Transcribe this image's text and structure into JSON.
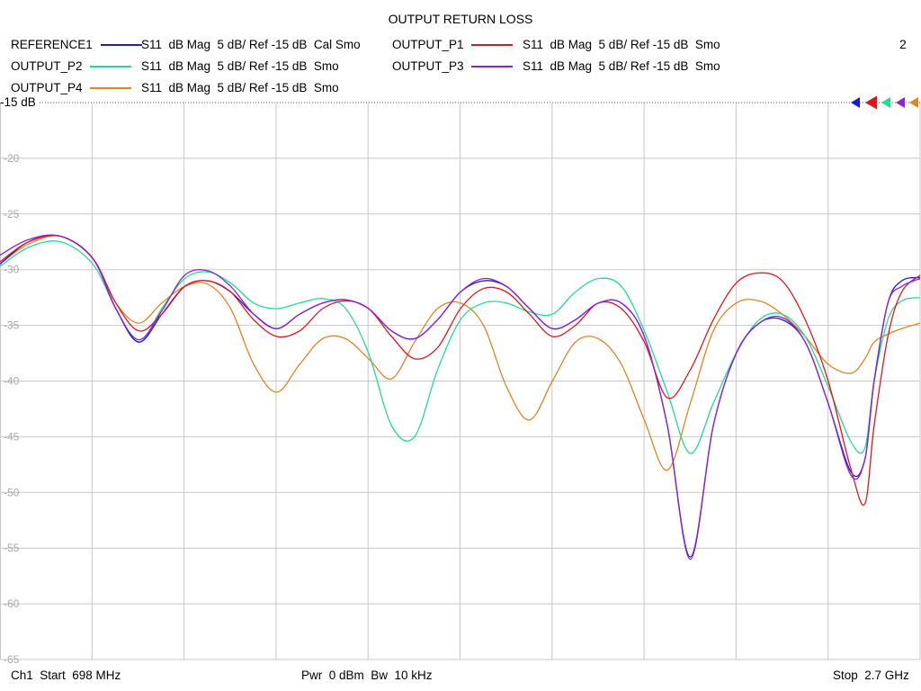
{
  "chart_data": {
    "type": "line",
    "title": "OUTPUT RETURN LOSS",
    "channel_number": "2",
    "ref_label": "-15 dB",
    "y_ticks": [
      "-20",
      "-25",
      "-30",
      "-35",
      "-40",
      "-45",
      "-50",
      "-55",
      "-60",
      "-65"
    ],
    "ylim": [
      -65,
      -15
    ],
    "xlim_mhz": [
      698,
      2700
    ],
    "x_divisions": 10,
    "grid": true,
    "legend_position": "top",
    "footer": {
      "start": "Ch1  Start  698 MHz",
      "center": "Pwr  0 dBm  Bw  10 kHz",
      "stop": "Stop  2.7 GHz"
    },
    "series": [
      {
        "name": "REFERENCE1",
        "desc": "S11  dB Mag  5 dB/ Ref -15 dB  Cal Smo",
        "color": "#1a1adb",
        "x": [
          698,
          760,
          830,
          900,
          950,
          1000,
          1050,
          1100,
          1150,
          1200,
          1250,
          1300,
          1350,
          1400,
          1450,
          1500,
          1550,
          1600,
          1650,
          1700,
          1750,
          1800,
          1850,
          1900,
          1950,
          2000,
          2050,
          2100,
          2150,
          2200,
          2250,
          2300,
          2350,
          2400,
          2450,
          2500,
          2550,
          2580,
          2600,
          2630,
          2660,
          2700
        ],
        "y": [
          -29.5,
          -27.5,
          -27,
          -29,
          -33.5,
          -36.5,
          -34,
          -31.5,
          -31,
          -32,
          -34,
          -35.3,
          -34,
          -33,
          -32.7,
          -33.5,
          -35.5,
          -36.2,
          -34.5,
          -32,
          -31,
          -31.5,
          -33.5,
          -35.3,
          -34.5,
          -33,
          -33,
          -36,
          -44,
          -55.8,
          -44,
          -37.5,
          -34.8,
          -34.5,
          -36.5,
          -42,
          -48.2,
          -47,
          -40,
          -33,
          -31,
          -30.7
        ]
      },
      {
        "name": "OUTPUT_P1",
        "desc": "S11  dB Mag  5 dB/ Ref -15 dB  Smo",
        "color": "#e0161c",
        "x": [
          698,
          760,
          830,
          900,
          950,
          1000,
          1050,
          1100,
          1150,
          1200,
          1250,
          1300,
          1350,
          1400,
          1450,
          1500,
          1550,
          1600,
          1650,
          1700,
          1750,
          1800,
          1850,
          1900,
          1950,
          2000,
          2050,
          2100,
          2150,
          2200,
          2250,
          2300,
          2350,
          2400,
          2450,
          2500,
          2550,
          2580,
          2600,
          2630,
          2660,
          2700
        ],
        "y": [
          -29.3,
          -27.5,
          -27,
          -29,
          -33,
          -35.5,
          -34,
          -31.5,
          -31,
          -32,
          -34.5,
          -36,
          -35.5,
          -33.5,
          -32.8,
          -33.5,
          -36,
          -38,
          -37,
          -33.5,
          -31.7,
          -32,
          -34,
          -36,
          -35,
          -33,
          -33.5,
          -36.5,
          -41.5,
          -39,
          -34.5,
          -31.2,
          -30.3,
          -31,
          -34.5,
          -40,
          -48,
          -51,
          -44,
          -36,
          -32,
          -30.5
        ]
      },
      {
        "name": "OUTPUT_P2",
        "desc": "S11  dB Mag  5 dB/ Ref -15 dB  Smo",
        "color": "#22dc92",
        "x": [
          698,
          760,
          830,
          900,
          950,
          1000,
          1050,
          1100,
          1150,
          1200,
          1250,
          1300,
          1350,
          1400,
          1450,
          1500,
          1550,
          1600,
          1650,
          1700,
          1750,
          1800,
          1850,
          1900,
          1950,
          2000,
          2050,
          2100,
          2150,
          2200,
          2250,
          2300,
          2350,
          2400,
          2450,
          2500,
          2550,
          2580,
          2600,
          2630,
          2660,
          2700
        ],
        "y": [
          -29.7,
          -28,
          -27.5,
          -29.5,
          -33.5,
          -36.5,
          -33.5,
          -30.8,
          -30.2,
          -31.2,
          -33,
          -33.5,
          -33,
          -32.6,
          -33.5,
          -37.5,
          -44,
          -45,
          -39,
          -34.5,
          -33,
          -33,
          -33.8,
          -34,
          -32,
          -30.8,
          -31.5,
          -35.5,
          -41,
          -46.5,
          -42,
          -37.5,
          -34.5,
          -34,
          -36,
          -40.5,
          -45.5,
          -46,
          -40,
          -34.5,
          -32.8,
          -32.5
        ]
      },
      {
        "name": "OUTPUT_P3",
        "desc": "S11  dB Mag  5 dB/ Ref -15 dB  Smo",
        "color": "#8c22d6",
        "x": [
          698,
          760,
          830,
          900,
          950,
          1000,
          1050,
          1100,
          1150,
          1200,
          1250,
          1300,
          1350,
          1400,
          1450,
          1500,
          1550,
          1600,
          1650,
          1700,
          1750,
          1800,
          1850,
          1900,
          1950,
          2000,
          2050,
          2100,
          2150,
          2200,
          2250,
          2300,
          2350,
          2400,
          2450,
          2500,
          2550,
          2580,
          2600,
          2630,
          2660,
          2700
        ],
        "y": [
          -28.7,
          -27.3,
          -27,
          -29,
          -33.5,
          -36.3,
          -33.7,
          -30.5,
          -30.1,
          -31.5,
          -34,
          -35.3,
          -34,
          -33,
          -32.7,
          -33.5,
          -35.5,
          -36.2,
          -34.5,
          -32,
          -30.8,
          -31.5,
          -33.5,
          -35.3,
          -34.5,
          -33,
          -33,
          -36,
          -44,
          -56,
          -44,
          -37.5,
          -34.8,
          -34.3,
          -36.5,
          -42,
          -48.5,
          -47,
          -40,
          -33,
          -31.5,
          -30.8
        ]
      },
      {
        "name": "OUTPUT_P4",
        "desc": "S11  dB Mag  5 dB/ Ref -15 dB  Smo",
        "color": "#e38321",
        "x": [
          698,
          760,
          830,
          900,
          950,
          1000,
          1050,
          1100,
          1150,
          1200,
          1250,
          1300,
          1350,
          1400,
          1450,
          1500,
          1550,
          1600,
          1650,
          1700,
          1750,
          1800,
          1850,
          1900,
          1950,
          2000,
          2050,
          2100,
          2150,
          2200,
          2250,
          2300,
          2350,
          2400,
          2450,
          2500,
          2550,
          2580,
          2600,
          2630,
          2660,
          2700
        ],
        "y": [
          -29.5,
          -27.7,
          -27,
          -29,
          -33,
          -34.8,
          -33,
          -31.5,
          -31.3,
          -33.5,
          -38.5,
          -41,
          -38.5,
          -36.2,
          -36.2,
          -38,
          -39.8,
          -36.5,
          -33.5,
          -33,
          -35,
          -40.5,
          -43.5,
          -40,
          -36.5,
          -36.2,
          -38.5,
          -43.5,
          -48,
          -42,
          -35.5,
          -33,
          -32.8,
          -34,
          -36,
          -38.5,
          -39.3,
          -38,
          -36.5,
          -35.8,
          -35.3,
          -34.8
        ]
      }
    ]
  }
}
